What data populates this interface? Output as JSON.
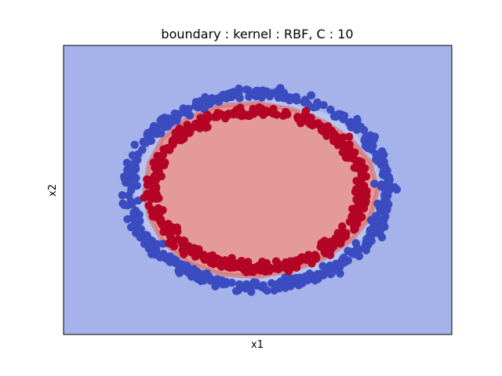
{
  "chart_data": {
    "type": "scatter",
    "title": "boundary : kernel : RBF, C : 10",
    "xlabel": "x1",
    "ylabel": "x2",
    "xlim": [
      -1.2,
      1.2
    ],
    "ylim": [
      -1.2,
      1.2
    ],
    "ticks_visible": false,
    "grid": false,
    "series": [
      {
        "class": "outer",
        "color": "#3b4cc0",
        "radius": 0.8,
        "count": 500
      },
      {
        "class": "inner",
        "color": "#b40426",
        "radius": 0.65,
        "count": 500
      }
    ],
    "regions": {
      "outside_color": "#a5b3ea",
      "inside_color": "#e39a99",
      "inside_edge_color": "#d86560"
    }
  }
}
